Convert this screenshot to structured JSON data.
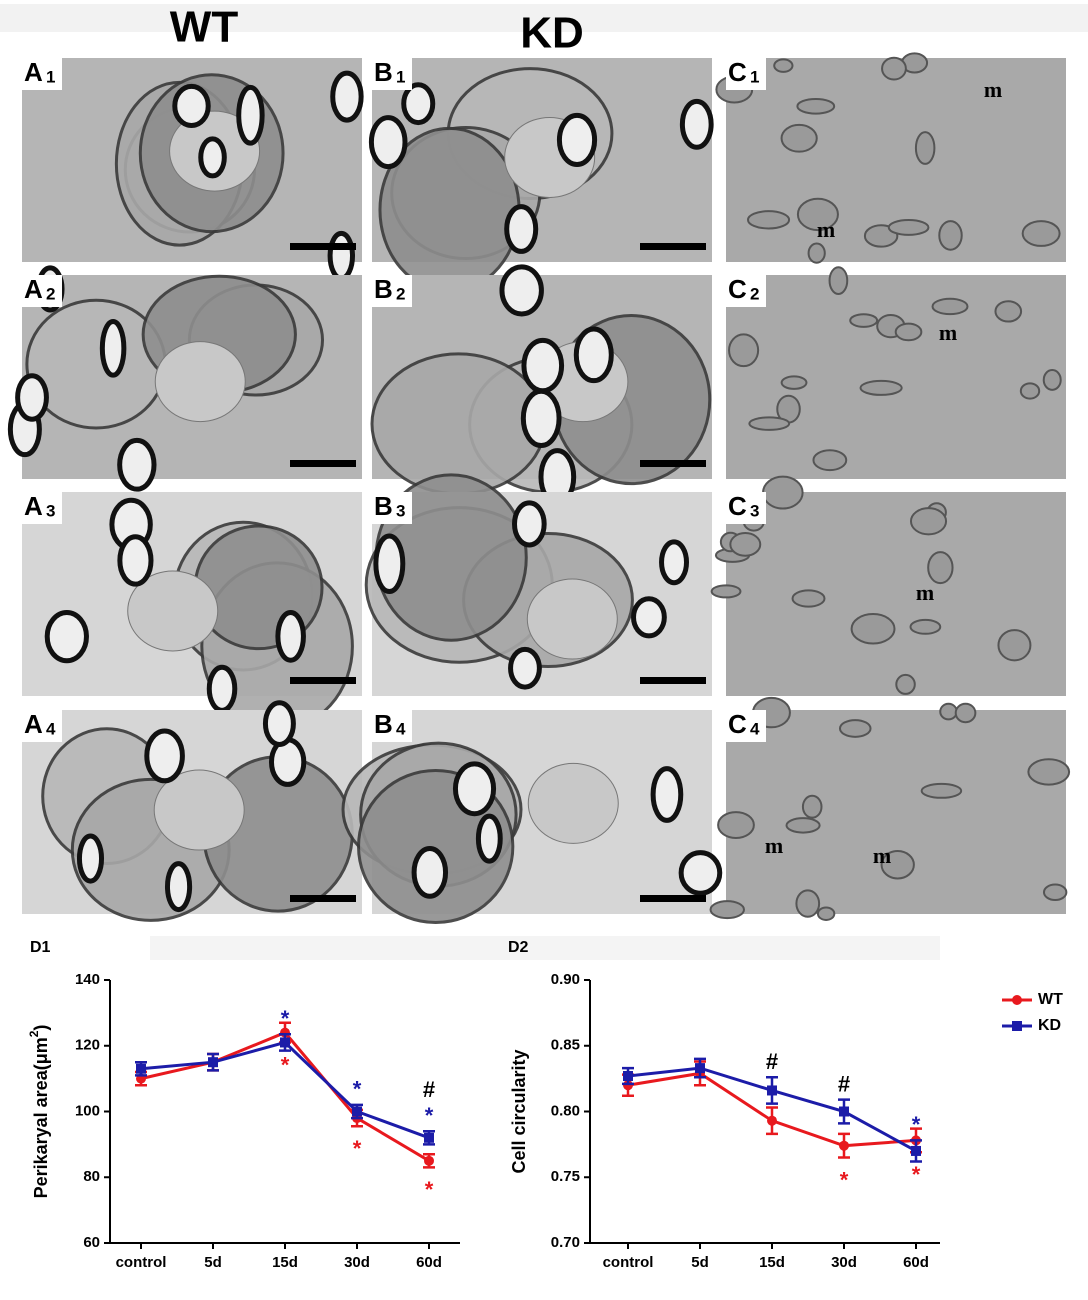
{
  "headers": {
    "wt": "WT",
    "kd": "KD"
  },
  "panels": [
    {
      "letter": "A",
      "index": "1"
    },
    {
      "letter": "B",
      "index": "1"
    },
    {
      "letter": "C",
      "index": "1",
      "annotations": [
        "m",
        "m"
      ]
    },
    {
      "letter": "A",
      "index": "2"
    },
    {
      "letter": "B",
      "index": "2"
    },
    {
      "letter": "C",
      "index": "2",
      "annotations": [
        "m"
      ]
    },
    {
      "letter": "A",
      "index": "3"
    },
    {
      "letter": "B",
      "index": "3"
    },
    {
      "letter": "C",
      "index": "3",
      "annotations": [
        "m"
      ]
    },
    {
      "letter": "A",
      "index": "4"
    },
    {
      "letter": "B",
      "index": "4"
    },
    {
      "letter": "C",
      "index": "4",
      "annotations": [
        "m",
        "m"
      ]
    }
  ],
  "chart_data": [
    {
      "type": "line",
      "label": "D1",
      "ylabel": [
        "Perikaryal area(μm",
        "2",
        ")"
      ],
      "categories": [
        "control",
        "5d",
        "15d",
        "30d",
        "60d"
      ],
      "ylim": [
        60,
        140
      ],
      "yticks": [
        60,
        80,
        100,
        120,
        140
      ],
      "legend": false,
      "significance": [
        null,
        null,
        null,
        null,
        "#"
      ],
      "series": [
        {
          "color": "#e8191e",
          "marker": "circle",
          "values": [
            110,
            115,
            124,
            98,
            85
          ],
          "errors": [
            2,
            2.5,
            3,
            2.5,
            2
          ],
          "annotations": [
            null,
            null,
            "*",
            "*",
            "*"
          ],
          "annotation_side": "below"
        },
        {
          "color": "#1c1ca8",
          "marker": "square",
          "values": [
            113,
            115,
            121,
            100,
            92
          ],
          "errors": [
            2,
            2.5,
            2.5,
            2,
            2
          ],
          "annotations": [
            null,
            null,
            "*",
            "*",
            "*"
          ],
          "annotation_side": "above"
        }
      ]
    },
    {
      "type": "line",
      "label": "D2",
      "ylabel": [
        "Cell circularity"
      ],
      "categories": [
        "control",
        "5d",
        "15d",
        "30d",
        "60d"
      ],
      "ylim": [
        0.7,
        0.9
      ],
      "yticks": [
        {
          "value": 0.7,
          "label": "0.70"
        },
        {
          "value": 0.75,
          "label": "0.75"
        },
        {
          "value": 0.8,
          "label": "0.80"
        },
        {
          "value": 0.85,
          "label": "0.85"
        },
        {
          "value": 0.9,
          "label": "0.90"
        }
      ],
      "legend": true,
      "legend_position": "upper right",
      "significance": [
        null,
        null,
        "#",
        "#",
        null
      ],
      "series": [
        {
          "name": "WT",
          "color": "#e8191e",
          "marker": "circle",
          "values": [
            0.82,
            0.829,
            0.793,
            0.774,
            0.778
          ],
          "errors": [
            0.008,
            0.009,
            0.01,
            0.009,
            0.009
          ],
          "annotations": [
            null,
            null,
            null,
            "*",
            "*"
          ],
          "annotation_side": "below"
        },
        {
          "name": "KD",
          "color": "#1c1ca8",
          "marker": "square",
          "values": [
            0.827,
            0.833,
            0.816,
            0.8,
            0.77
          ],
          "errors": [
            0.006,
            0.007,
            0.01,
            0.009,
            0.008
          ],
          "annotations": [
            null,
            null,
            null,
            null,
            "*"
          ],
          "annotation_side": "above"
        }
      ]
    }
  ]
}
